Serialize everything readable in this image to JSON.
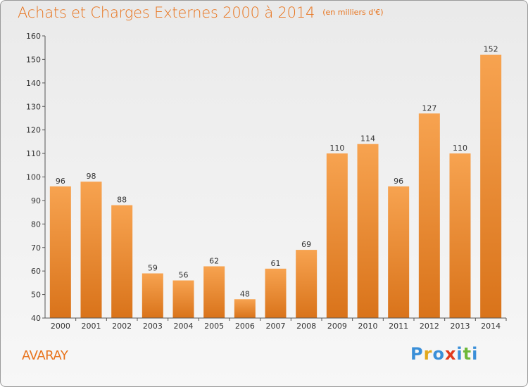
{
  "title": "Achats et Charges Externes 2000 à 2014",
  "unit": "(en milliers d'€)",
  "town": "AVARAY",
  "brand": {
    "letters": [
      "P",
      "r",
      "o",
      "x",
      "i",
      "t",
      "i"
    ],
    "colors": [
      "#3a8fd8",
      "#e2a81c",
      "#3a8fd8",
      "#e23a1c",
      "#3a8fd8",
      "#6cb83a",
      "#3a8fd8"
    ]
  },
  "colors": {
    "bar_light": "#f7a350",
    "bar_dark": "#d9731a",
    "accent": "#e8731c"
  },
  "chart_data": {
    "type": "bar",
    "categories": [
      "2000",
      "2001",
      "2002",
      "2003",
      "2004",
      "2005",
      "2006",
      "2007",
      "2008",
      "2009",
      "2010",
      "2011",
      "2012",
      "2013",
      "2014"
    ],
    "values": [
      96,
      98,
      88,
      59,
      56,
      62,
      48,
      61,
      69,
      110,
      114,
      96,
      127,
      110,
      152
    ],
    "ylim": [
      40,
      160
    ],
    "yticks": [
      40,
      50,
      60,
      70,
      80,
      90,
      100,
      110,
      120,
      130,
      140,
      150,
      160
    ],
    "grid": false
  }
}
